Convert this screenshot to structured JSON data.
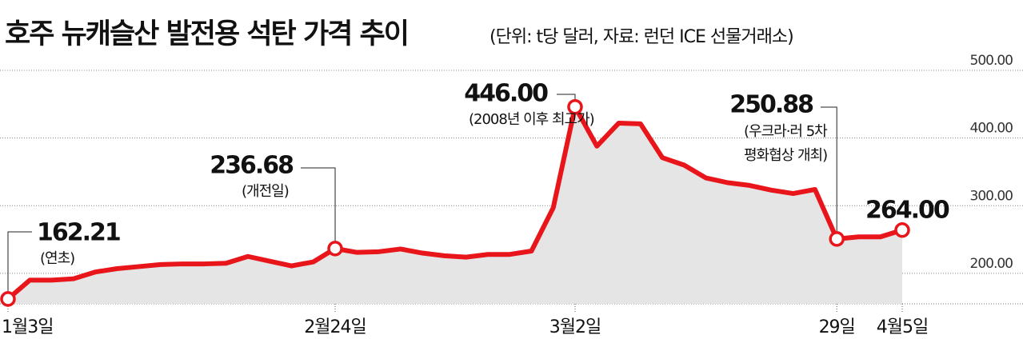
{
  "chart_data": {
    "type": "line",
    "title": "호주 뉴캐슬산 발전용 석탄 가격 추이",
    "subtitle": "(단위: t당 달러, 자료: 런던 ICE 선물거래소)",
    "categories": [
      "1월3일",
      null,
      null,
      null,
      null,
      null,
      null,
      null,
      null,
      null,
      null,
      null,
      null,
      null,
      null,
      "2월24일",
      null,
      null,
      null,
      null,
      null,
      null,
      null,
      null,
      null,
      null,
      "3월2일",
      null,
      null,
      null,
      null,
      null,
      null,
      null,
      null,
      null,
      null,
      null,
      "29일",
      null,
      null,
      "4월5일"
    ],
    "values": [
      162.21,
      190,
      190,
      192,
      202,
      207,
      210,
      213,
      214,
      214,
      215,
      225,
      218,
      211,
      217,
      236.68,
      231,
      232,
      236,
      230,
      226,
      224,
      228,
      228,
      233,
      297,
      446,
      388,
      422,
      421,
      371,
      360,
      341,
      334,
      330,
      323,
      318,
      324,
      250.88,
      254,
      254,
      264
    ],
    "value_labels": [
      "162.21",
      null,
      null,
      null,
      null,
      null,
      null,
      null,
      null,
      null,
      null,
      null,
      null,
      null,
      null,
      "236.68",
      null,
      null,
      null,
      null,
      null,
      null,
      null,
      null,
      null,
      null,
      "446.00",
      null,
      null,
      null,
      null,
      null,
      null,
      null,
      null,
      null,
      null,
      null,
      "250.88",
      null,
      null,
      "264.00"
    ],
    "annotations": [
      {
        "index": 0,
        "lines": [
          "(연초)"
        ]
      },
      {
        "index": 15,
        "lines": [
          "(개전일)"
        ]
      },
      {
        "index": 26,
        "lines": [
          "(2008년 이후 최고가)"
        ]
      },
      {
        "index": 38,
        "lines": [
          "(우크라·러 5차",
          "평화협상 개최)"
        ]
      }
    ],
    "color": "#e8151b",
    "area_color": "#e5e5e5",
    "ylim": [
      155,
      500
    ],
    "yticks": [
      {
        "value": 200,
        "label": "200.00"
      },
      {
        "value": 300,
        "label": "300.00"
      },
      {
        "value": 400,
        "label": "400.00"
      },
      {
        "value": 500,
        "label": "500.00"
      }
    ],
    "grid": true
  }
}
